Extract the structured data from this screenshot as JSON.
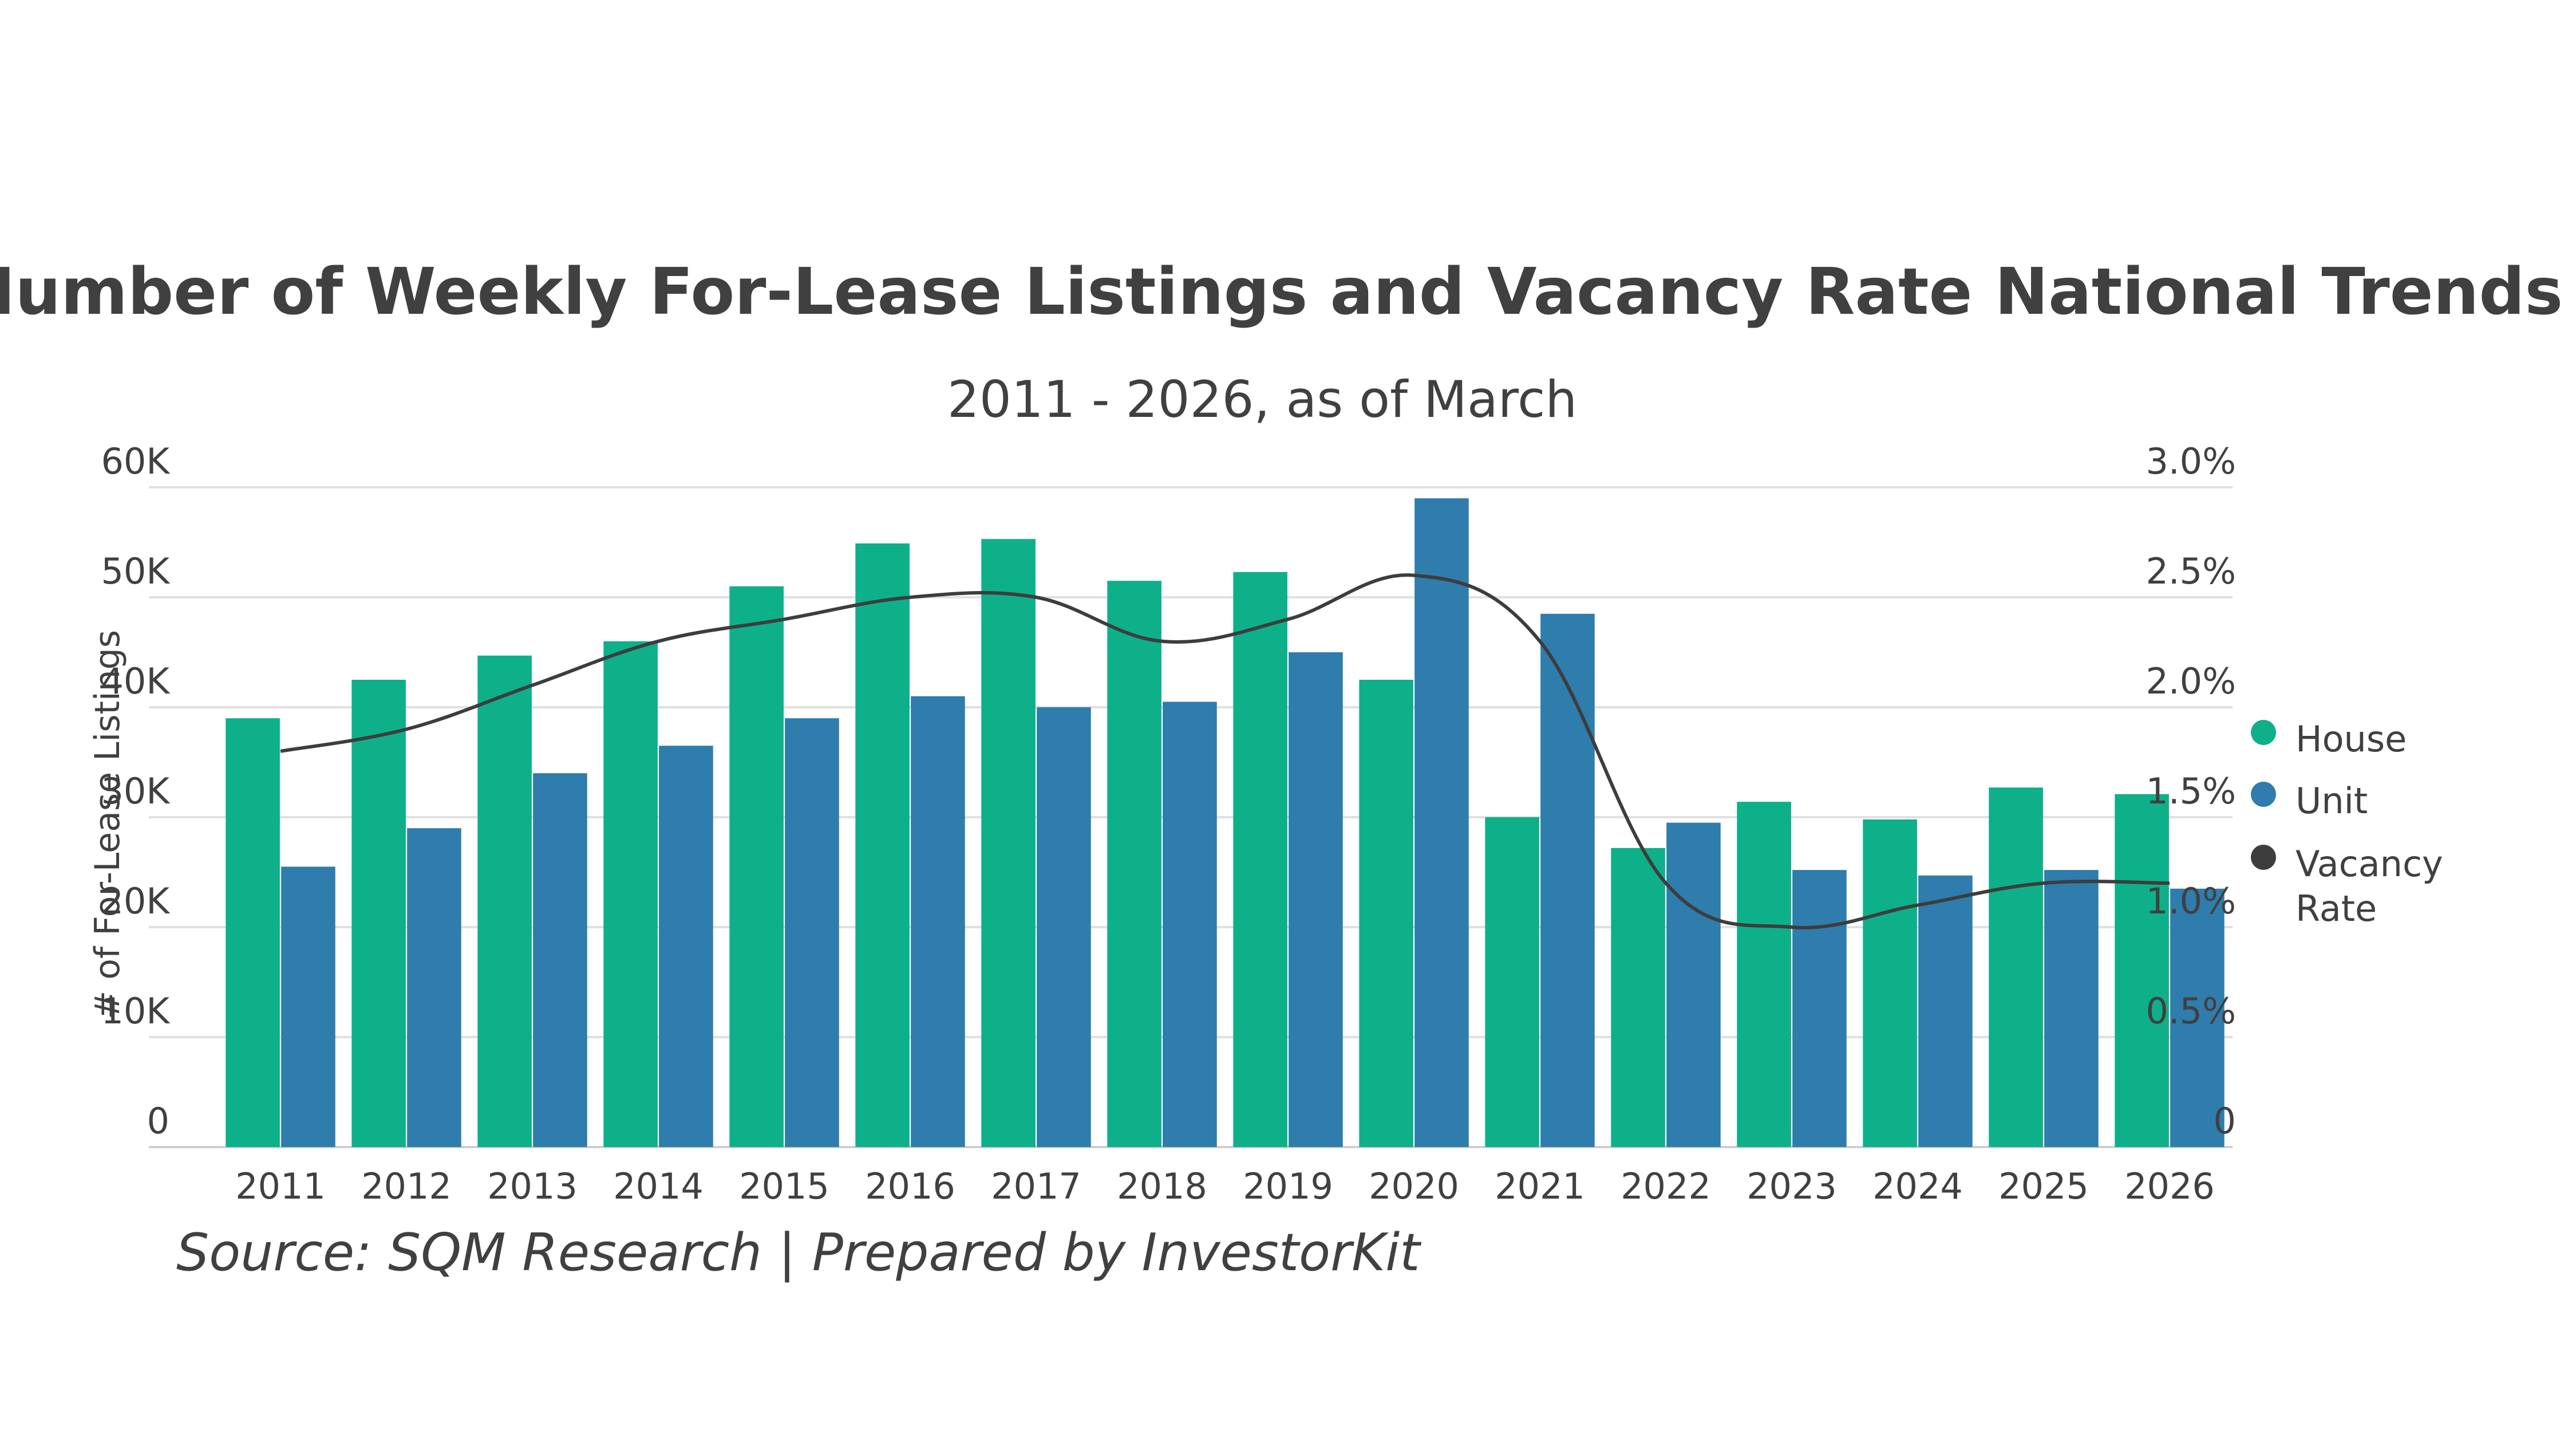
{
  "chart_data": {
    "type": "bar",
    "title": "Number of Weekly For-Lease Listings and Vacancy Rate National Trends",
    "subtitle": "2011 - 2026, as of March",
    "source": "Source: SQM Research | Prepared by InvestorKit",
    "ylabel": "# of For-Lease Listings",
    "ylim": [
      0,
      60000
    ],
    "y_ticks": [
      "0",
      "10K",
      "20K",
      "30K",
      "40K",
      "50K",
      "60K"
    ],
    "y2lim": [
      0,
      3.0
    ],
    "y2_ticks": [
      "0",
      "0.5%",
      "1.0%",
      "1.5%",
      "2.0%",
      "2.5%",
      "3.0%"
    ],
    "categories": [
      "2011",
      "2012",
      "2013",
      "2014",
      "2015",
      "2016",
      "2017",
      "2018",
      "2019",
      "2020",
      "2021",
      "2022",
      "2023",
      "2024",
      "2025",
      "2026"
    ],
    "series": [
      {
        "name": "House",
        "color": "#0db089",
        "kind": "bar",
        "values": [
          39000,
          42500,
          44700,
          46000,
          51000,
          54900,
          55300,
          51500,
          52300,
          42500,
          30000,
          27200,
          31400,
          29800,
          32700,
          32100
        ]
      },
      {
        "name": "Unit",
        "color": "#2e7dac",
        "kind": "bar",
        "values": [
          25500,
          29000,
          34000,
          36500,
          39000,
          41000,
          40000,
          40500,
          45000,
          59000,
          48500,
          29500,
          25200,
          24700,
          25200,
          23500
        ]
      },
      {
        "name": "Vacancy Rate",
        "color": "#3d3d3d",
        "kind": "line",
        "axis": "right",
        "values": [
          1.8,
          1.9,
          2.1,
          2.3,
          2.4,
          2.5,
          2.5,
          2.3,
          2.4,
          2.6,
          2.3,
          1.2,
          1.0,
          1.1,
          1.2,
          1.2
        ]
      }
    ],
    "legend": {
      "placement": "right",
      "items": [
        "House",
        "Unit",
        "Vacancy",
        "Rate"
      ]
    },
    "grid": true
  }
}
